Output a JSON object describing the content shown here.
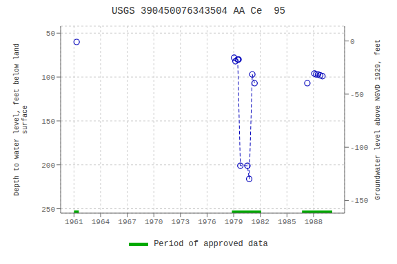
{
  "chart_data": {
    "type": "scatter",
    "title": "USGS 390450076343504 AA Ce  95",
    "y_label": "Depth to water level, feet below land\nsurface",
    "y2_label": "Groundwater level above NGVD 1929, feet",
    "xlim": [
      1959.5,
      1991.5
    ],
    "xticks": [
      1961,
      1964,
      1967,
      1970,
      1973,
      1976,
      1979,
      1982,
      1985,
      1988
    ],
    "ylim": [
      255,
      42
    ],
    "yticks": [
      50,
      100,
      150,
      200,
      250
    ],
    "y2lim": [
      -162,
      14
    ],
    "y2ticks": [
      0,
      -50,
      -100,
      -150
    ],
    "grid": true,
    "legend": "bottom",
    "series": [
      {
        "type": "scatter",
        "marker": "circle",
        "color": "#0000bb",
        "x": [
          1961.3
        ],
        "values": [
          60
        ]
      },
      {
        "type": "scatter",
        "marker": "circle",
        "color": "#0000bb",
        "x": [
          1979.05,
          1979.2,
          1979.45,
          1979.55,
          1979.75,
          1980.55,
          1980.75,
          1981.1,
          1981.35
        ],
        "values": [
          78,
          82,
          80,
          80,
          201,
          201,
          216,
          97,
          107
        ]
      },
      {
        "type": "scatter",
        "marker": "circle",
        "color": "#0000bb",
        "x": [
          1987.3,
          1988.1,
          1988.3,
          1988.5,
          1988.75,
          1989.0
        ],
        "values": [
          107,
          96,
          97,
          97,
          98,
          99
        ]
      },
      {
        "type": "line",
        "line_style": "dashed",
        "color": "#0000bb",
        "x": [
          1979.45,
          1979.75,
          1980.55,
          1980.75,
          1981.1,
          1981.35
        ],
        "values": [
          80,
          201,
          201,
          216,
          97,
          107
        ]
      },
      {
        "name": "Period of approved data",
        "type": "bar",
        "color": "#00aa00",
        "x_start": [
          1961.0,
          1978.8,
          1986.7
        ],
        "x_end": [
          1961.55,
          1982.1,
          1990.1
        ],
        "y": 252,
        "height": 3
      }
    ]
  }
}
